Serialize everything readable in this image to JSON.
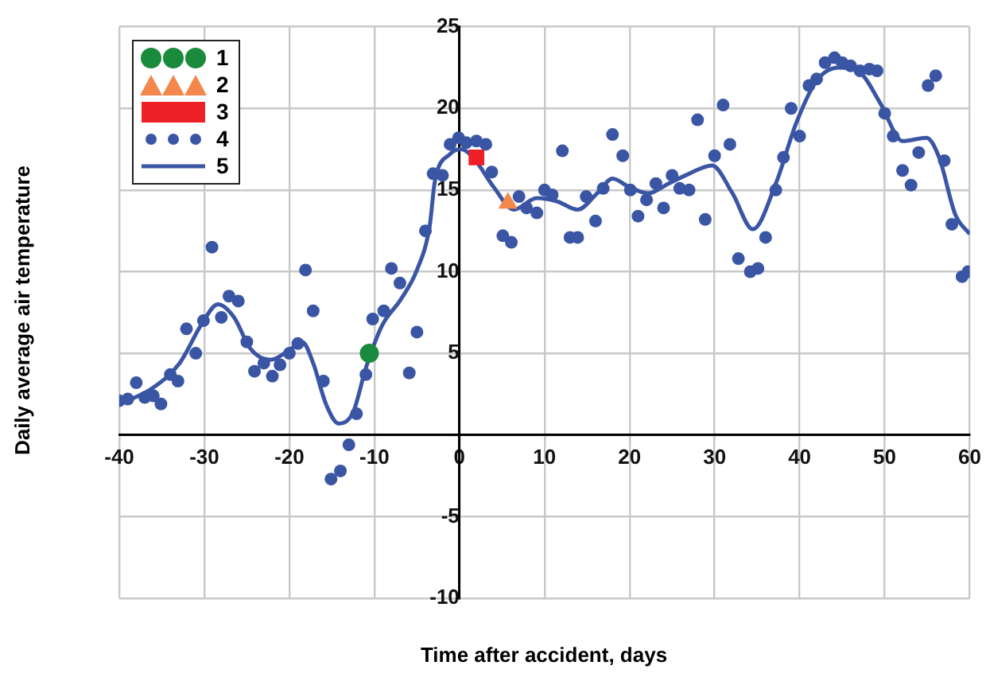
{
  "chart_data": {
    "type": "scatter",
    "xlabel": "Time after accident, days",
    "ylabel": "Daily average air temperature",
    "xlim": [
      -40,
      60
    ],
    "ylim": [
      -10,
      25
    ],
    "xticks": [
      -40,
      -30,
      -20,
      -10,
      0,
      10,
      20,
      30,
      40,
      50,
      60
    ],
    "yticks": [
      -10,
      -5,
      {
        "value": 0,
        "label": null
      },
      5,
      10,
      15,
      20,
      25
    ],
    "grid": true,
    "legend": "top left",
    "series": [
      {
        "name": "1",
        "type": "scatter",
        "marker": "circle",
        "color": "#1a8a3c",
        "x": [
          -10.6
        ],
        "values": [
          5.0
        ]
      },
      {
        "name": "2",
        "type": "scatter",
        "marker": "triangle",
        "color": "#f4874b",
        "x": [
          5.7
        ],
        "values": [
          14.2
        ]
      },
      {
        "name": "3",
        "type": "scatter",
        "marker": "square",
        "color": "#ee2027",
        "x": [
          2
        ],
        "values": [
          17.0
        ]
      },
      {
        "name": "4",
        "type": "scatter",
        "marker": "circle",
        "color": "#3a55a4",
        "x": [
          -40,
          -39,
          -38,
          -37,
          -36,
          -35.1,
          -34,
          -33.1,
          -32.1,
          -31,
          -30.1,
          -29.1,
          -28,
          -27.1,
          -26,
          -25,
          -24.1,
          -23,
          -22,
          -21.1,
          -20,
          -19,
          -18.1,
          -17.2,
          -16,
          -15.1,
          -14,
          -13,
          -12.1,
          -11,
          -10.2,
          -8.9,
          -8,
          -7,
          -5.9,
          -5,
          -4,
          -3.1,
          -2,
          -1.1,
          -0.1,
          0.8,
          2,
          3.1,
          3.8,
          5.1,
          6.1,
          7,
          7.9,
          9.1,
          10,
          10.9,
          12.1,
          13,
          13.9,
          14.9,
          16,
          16.9,
          18,
          19.2,
          20.1,
          21,
          22,
          23.1,
          24,
          25,
          25.9,
          27,
          28,
          28.9,
          30,
          31,
          31.8,
          32.8,
          34.2,
          35.1,
          36,
          37.2,
          38.1,
          39,
          40,
          41.1,
          42,
          43,
          44.1,
          45,
          46,
          47.1,
          48.2,
          49.1,
          50,
          51,
          52.1,
          53.1,
          54,
          55.1,
          56,
          57,
          57.9,
          59.1,
          59.8
        ],
        "values": [
          2.1,
          2.2,
          3.2,
          2.3,
          2.4,
          1.9,
          3.7,
          3.3,
          6.5,
          5.0,
          7.0,
          11.5,
          7.2,
          8.5,
          8.2,
          5.7,
          3.9,
          4.4,
          3.6,
          4.3,
          5.0,
          5.6,
          10.1,
          7.6,
          3.3,
          -2.7,
          -2.2,
          -0.6,
          1.3,
          3.7,
          7.1,
          7.6,
          10.2,
          9.3,
          3.8,
          6.3,
          12.5,
          16.0,
          15.9,
          17.8,
          18.2,
          17.9,
          18.0,
          17.8,
          16.1,
          12.2,
          11.8,
          14.6,
          13.9,
          13.6,
          15.0,
          14.7,
          17.4,
          12.1,
          12.1,
          14.6,
          13.1,
          15.1,
          18.4,
          17.1,
          15.0,
          13.4,
          14.4,
          15.4,
          13.9,
          15.9,
          15.1,
          15.0,
          19.3,
          13.2,
          17.1,
          20.2,
          17.8,
          10.8,
          10.0,
          10.2,
          12.1,
          15.0,
          17.0,
          20.0,
          18.3,
          21.4,
          21.8,
          22.8,
          23.1,
          22.8,
          22.6,
          22.3,
          22.4,
          22.3,
          19.7,
          18.3,
          16.2,
          15.3,
          17.3,
          21.4,
          22.0,
          16.8,
          12.9,
          9.7,
          10.0
        ]
      },
      {
        "name": "5",
        "type": "line",
        "marker": "none",
        "color": "#3a55a4",
        "x": [
          -40,
          -36.3,
          -32.9,
          -30.3,
          -28.4,
          -26.5,
          -24.6,
          -22.2,
          -20,
          -18.5,
          -17.2,
          -15.7,
          -14.2,
          -12.5,
          -11,
          -9.1,
          -6.9,
          -5,
          -3.5,
          -2.9,
          -1.1,
          0.2,
          1.6,
          4,
          6.4,
          9.1,
          11.5,
          13.9,
          16.2,
          18,
          19.9,
          22.2,
          24.6,
          27,
          29.7,
          32.1,
          34.5,
          37.2,
          39.6,
          42,
          44.6,
          47.1,
          49.5,
          52.1,
          54.9,
          56.4,
          58.3,
          60
        ],
        "values": [
          1.9,
          2.8,
          4.4,
          6.8,
          8.0,
          7.2,
          5.3,
          4.6,
          5.2,
          5.7,
          4.4,
          1.9,
          0.7,
          1.4,
          4.1,
          6.7,
          8.3,
          10.1,
          12.8,
          15.5,
          17.2,
          17.5,
          17.0,
          15.2,
          13.8,
          14.5,
          14.3,
          13.8,
          14.8,
          15.7,
          15.2,
          14.8,
          15.4,
          16.0,
          16.5,
          14.8,
          12.6,
          15.4,
          19.1,
          21.7,
          22.5,
          22.2,
          20.3,
          18.0,
          18.2,
          17.0,
          13.5,
          12.3
        ]
      }
    ]
  }
}
